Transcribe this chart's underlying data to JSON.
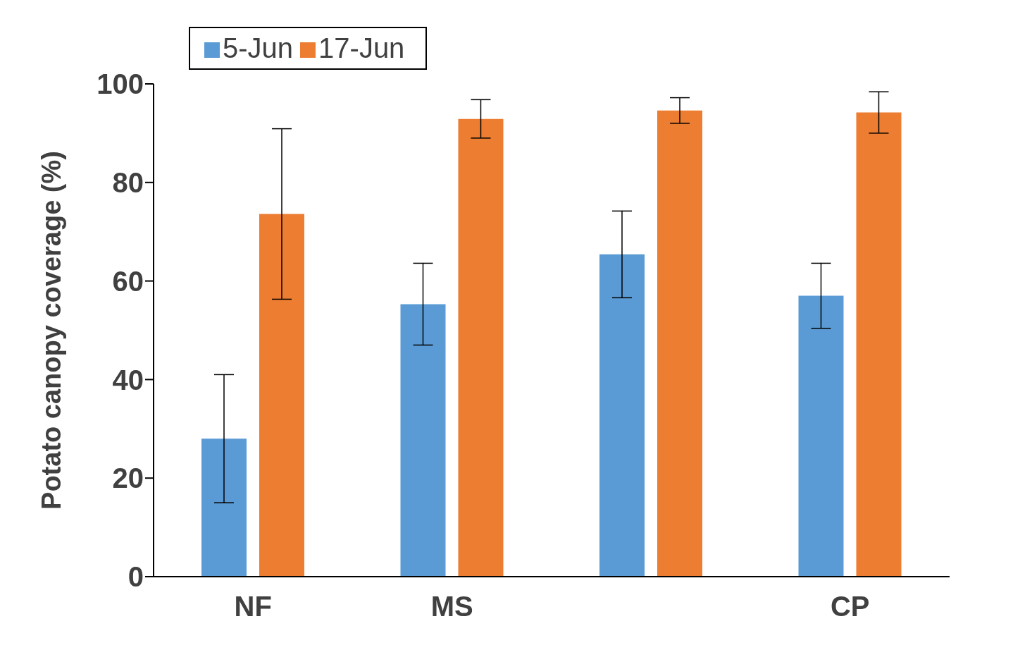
{
  "chart_data": {
    "type": "bar",
    "ylabel": "Potato canopy coverage (%)",
    "categories": [
      "NF",
      "MS",
      null,
      "CP"
    ],
    "series": [
      {
        "name": "5-Jun",
        "color": "#5b9bd5",
        "values": [
          28,
          55.3,
          65.4,
          57
        ],
        "errors": [
          13,
          8.3,
          8.8,
          6.6
        ]
      },
      {
        "name": "17-Jun",
        "color": "#ed7d31",
        "values": [
          73.6,
          92.9,
          94.6,
          94.2
        ],
        "errors": [
          17.3,
          3.9,
          2.6,
          4.2
        ]
      }
    ],
    "ylim": [
      0,
      100
    ],
    "yticks": [
      0,
      20,
      40,
      60,
      80,
      100
    ],
    "grid": false,
    "legend": "top left"
  }
}
